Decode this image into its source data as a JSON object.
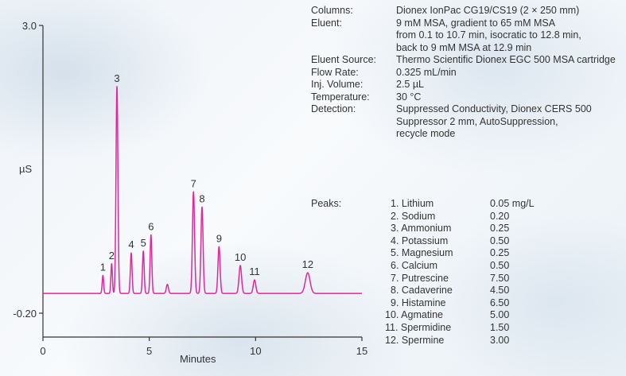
{
  "conditions": [
    {
      "label": "Columns:",
      "lines": [
        "Dionex IonPac CG19/CS19 (2 × 250 mm)"
      ]
    },
    {
      "label": "Eluent:",
      "lines": [
        "9 mM MSA, gradient to 65 mM MSA",
        "from 0.1 to 10.7 min, isocratic to 12.8 min,",
        "back to 9 mM MSA at 12.9 min"
      ]
    },
    {
      "label": "Eluent Source:",
      "lines": [
        "Thermo Scientific Dionex EGC 500 MSA  cartridge"
      ]
    },
    {
      "label": "Flow Rate:",
      "lines": [
        "0.325 mL/min"
      ]
    },
    {
      "label": "Inj. Volume:",
      "lines": [
        "2.5 µL"
      ]
    },
    {
      "label": "Temperature:",
      "lines": [
        "30 °C"
      ]
    },
    {
      "label": "Detection:",
      "lines": [
        "Suppressed Conductivity, Dionex CERS 500",
        "Suppressor 2 mm, AutoSuppression,",
        "recycle mode"
      ]
    }
  ],
  "peaks_label": "Peaks:",
  "peaks": [
    {
      "name": "1. Lithium",
      "conc": "0.05 mg/L"
    },
    {
      "name": "2. Sodium",
      "conc": "0.20"
    },
    {
      "name": "3. Ammonium",
      "conc": "0.25"
    },
    {
      "name": "4. Potassium",
      "conc": "0.50"
    },
    {
      "name": "5. Magnesium",
      "conc": "0.25"
    },
    {
      "name": "6. Calcium",
      "conc": "0.50"
    },
    {
      "name": "7. Putrescine",
      "conc": "7.50"
    },
    {
      "name": "8. Cadaverine",
      "conc": "4.50"
    },
    {
      "name": "9. Histamine",
      "conc": "6.50"
    },
    {
      "name": "10. Agmatine",
      "conc": "5.00"
    },
    {
      "name": "11. Spermidine",
      "conc": "1.50"
    },
    {
      "name": "12. Spermine",
      "conc": "3.00"
    }
  ],
  "chart_data": {
    "type": "line",
    "xlabel": "Minutes",
    "ylabel": "µS",
    "xlim": [
      0,
      15
    ],
    "ylim": [
      -0.2,
      3.0
    ],
    "xticks": [
      "0",
      "5",
      "10",
      "15"
    ],
    "yticks": [
      "-0.20",
      "3.0"
    ],
    "grid": false,
    "line_color": "#e0289a",
    "baseline": 0.02,
    "peaks": [
      {
        "label": "1",
        "rt": 2.82,
        "height": 0.2,
        "width": 0.035
      },
      {
        "label": "2",
        "rt": 3.23,
        "height": 0.33,
        "width": 0.035
      },
      {
        "label": "3",
        "rt": 3.48,
        "height": 2.3,
        "width": 0.045
      },
      {
        "label": "4",
        "rt": 4.15,
        "height": 0.45,
        "width": 0.04
      },
      {
        "label": "5",
        "rt": 4.72,
        "height": 0.47,
        "width": 0.04
      },
      {
        "label": "6",
        "rt": 5.08,
        "height": 0.65,
        "width": 0.04
      },
      {
        "label": "",
        "rt": 5.85,
        "height": 0.1,
        "width": 0.05
      },
      {
        "label": "7",
        "rt": 7.08,
        "height": 1.13,
        "width": 0.05
      },
      {
        "label": "8",
        "rt": 7.48,
        "height": 0.96,
        "width": 0.05
      },
      {
        "label": "9",
        "rt": 8.28,
        "height": 0.52,
        "width": 0.05
      },
      {
        "label": "10",
        "rt": 9.28,
        "height": 0.31,
        "width": 0.06
      },
      {
        "label": "11",
        "rt": 9.95,
        "height": 0.15,
        "width": 0.06
      },
      {
        "label": "12",
        "rt": 12.45,
        "height": 0.23,
        "width": 0.11
      }
    ]
  }
}
